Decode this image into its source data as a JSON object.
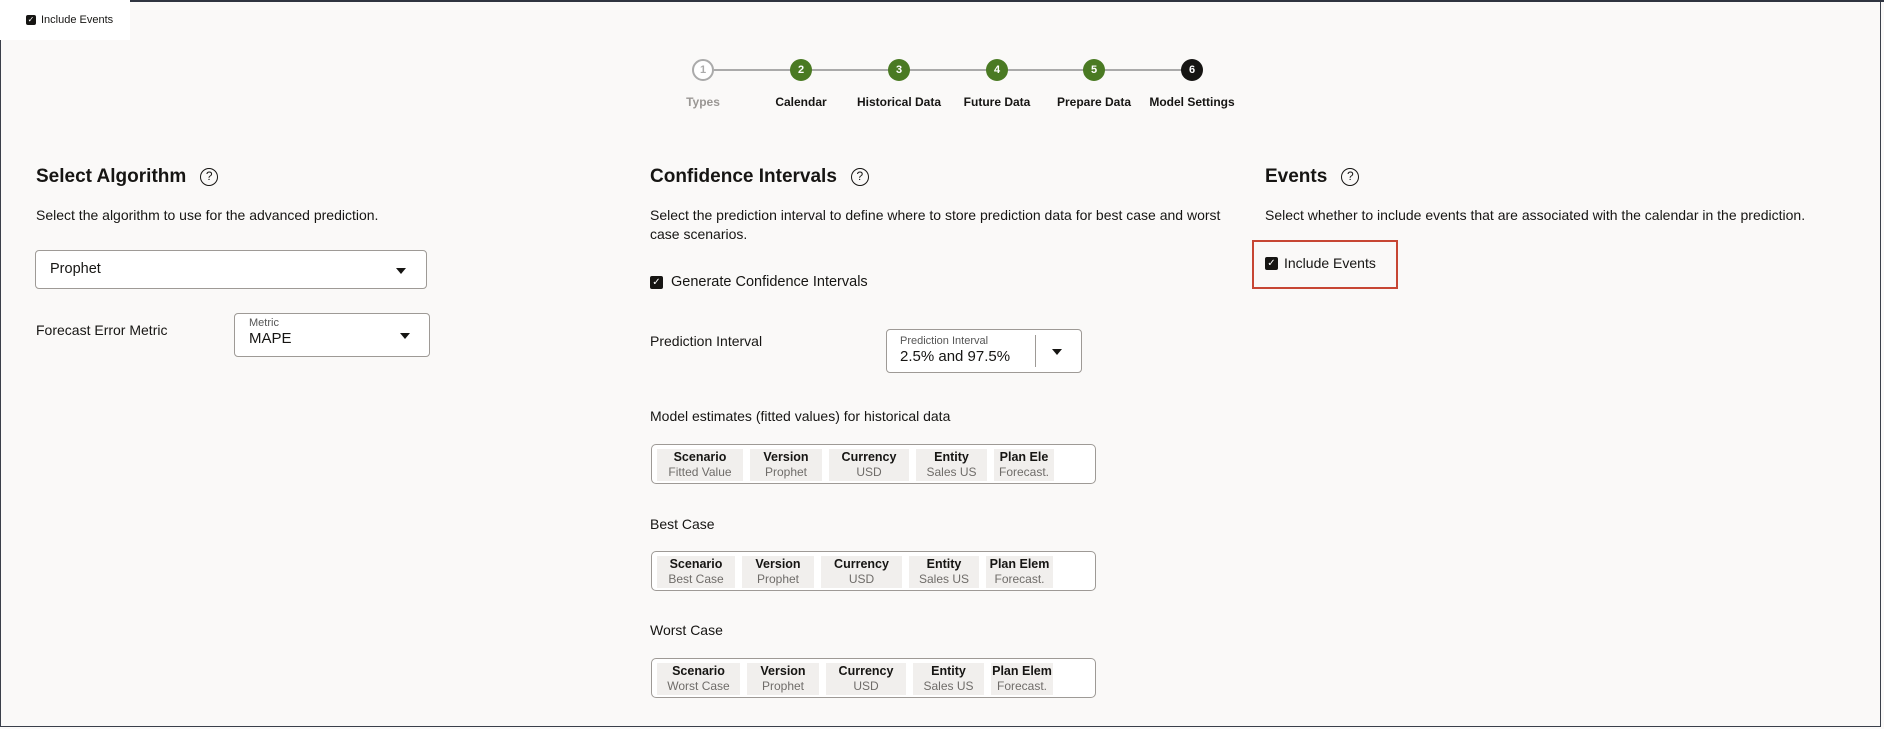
{
  "tooltip": {
    "checkbox_label": "Include Events",
    "checked": true
  },
  "stepper": {
    "steps": [
      {
        "number": "1",
        "label": "Types",
        "state": "inactive"
      },
      {
        "number": "2",
        "label": "Calendar",
        "state": "complete"
      },
      {
        "number": "3",
        "label": "Historical Data",
        "state": "complete"
      },
      {
        "number": "4",
        "label": "Future Data",
        "state": "complete"
      },
      {
        "number": "5",
        "label": "Prepare Data",
        "state": "complete"
      },
      {
        "number": "6",
        "label": "Model Settings",
        "state": "current"
      }
    ],
    "colors": {
      "complete": "#4a7a23",
      "current": "#161513",
      "inactive": "#aaaaaa"
    }
  },
  "algorithm": {
    "title": "Select Algorithm",
    "description": "Select the algorithm to use for the advanced prediction.",
    "selected": "Prophet",
    "metric_label": "Forecast Error Metric",
    "metric_field_label": "Metric",
    "metric_value": "MAPE"
  },
  "confidence": {
    "title": "Confidence Intervals",
    "description": "Select the prediction interval to define where to store prediction data for best case and worst case scenarios.",
    "generate_label": "Generate Confidence Intervals",
    "generate_checked": true,
    "interval_label": "Prediction Interval",
    "interval_field_label": "Prediction Interval",
    "interval_value": "2.5% and 97.5%",
    "groups": [
      {
        "label": "Model estimates (fitted values) for historical data",
        "dims": [
          {
            "name": "Scenario",
            "value": "Fitted Value"
          },
          {
            "name": "Version",
            "value": "Prophet"
          },
          {
            "name": "Currency",
            "value": "USD"
          },
          {
            "name": "Entity",
            "value": "Sales US"
          },
          {
            "name": "Plan Ele",
            "value": "Forecast."
          }
        ]
      },
      {
        "label": "Best Case",
        "dims": [
          {
            "name": "Scenario",
            "value": "Best Case"
          },
          {
            "name": "Version",
            "value": "Prophet"
          },
          {
            "name": "Currency",
            "value": "USD"
          },
          {
            "name": "Entity",
            "value": "Sales US"
          },
          {
            "name": "Plan Elem",
            "value": "Forecast."
          }
        ]
      },
      {
        "label": "Worst Case",
        "dims": [
          {
            "name": "Scenario",
            "value": "Worst Case"
          },
          {
            "name": "Version",
            "value": "Prophet"
          },
          {
            "name": "Currency",
            "value": "USD"
          },
          {
            "name": "Entity",
            "value": "Sales US"
          },
          {
            "name": "Plan Elem",
            "value": "Forecast."
          }
        ]
      }
    ]
  },
  "events": {
    "title": "Events",
    "description": "Select whether to include events that are associated with the calendar in the prediction.",
    "include_label": "Include Events",
    "include_checked": true,
    "highlight_color": "#c74634"
  },
  "icons": {
    "help": "help-circle-icon",
    "caret": "caret-down-icon",
    "check": "checkmark-icon"
  }
}
